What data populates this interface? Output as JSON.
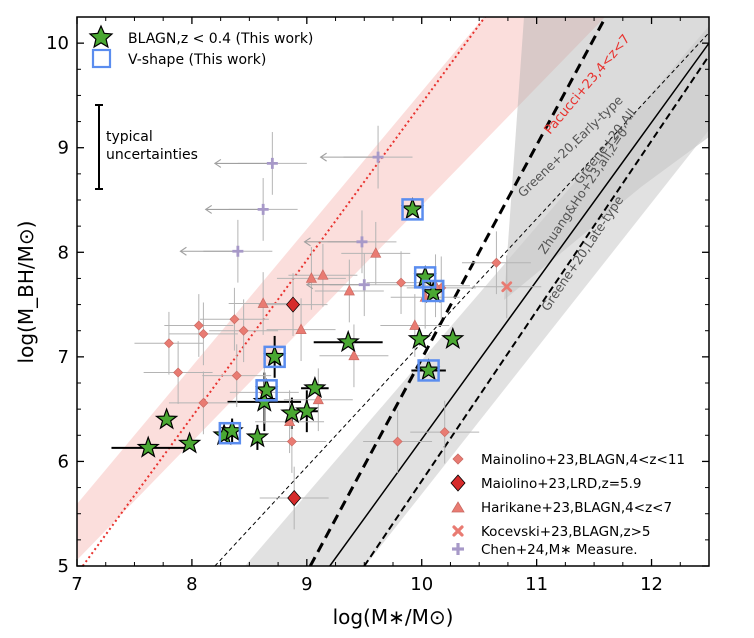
{
  "chart_data": {
    "type": "scatter",
    "xlabel": "log(M∗/M⊙)",
    "ylabel": "log(M_BH/M⊙)",
    "xlim": [
      7,
      12.5
    ],
    "ylim": [
      5,
      10.25
    ],
    "xticks": [
      "7",
      "8",
      "9",
      "10",
      "11",
      "12"
    ],
    "yticks": [
      "5",
      "6",
      "7",
      "8",
      "9",
      "10"
    ],
    "grid": false,
    "legend_top": {
      "placement": "top-left",
      "entries": [
        {
          "label": "BLAGN,z < 0.4 (This work)",
          "marker": "star"
        },
        {
          "label": "V-shape (This work)",
          "marker": "open-square"
        }
      ]
    },
    "legend_bottom": {
      "placement": "bottom-right",
      "entries": [
        {
          "label": "Mainolino+23,BLAGN,4<z<11",
          "marker": "small-diamond"
        },
        {
          "label": "Maiolino+23,LRD,z=5.9",
          "marker": "diamond"
        },
        {
          "label": "Harikane+23,BLAGN,4<z<7",
          "marker": "triangle"
        },
        {
          "label": "Kocevski+23,BLAGN,z>5",
          "marker": "x"
        },
        {
          "label": "Chen+24,M∗ Measure.",
          "marker": "plus"
        }
      ]
    },
    "annotations": {
      "typical": "typical",
      "uncertainties": "uncertainties"
    },
    "relations": [
      {
        "label": "Pacucci+23,4<z<7",
        "style": "dotted",
        "color": "#e8322e",
        "x": [
          7.05,
          10.55
        ],
        "y": [
          5.0,
          10.25
        ]
      },
      {
        "label": "Greene+20,Early-type",
        "style": "band",
        "color": "#8a8a8a",
        "x": [
          9.5,
          12.5
        ],
        "y": [
          7.52,
          10.25
        ]
      },
      {
        "label": "Greene+20,All",
        "style": "thin-dashed",
        "color": "#000000",
        "x": [
          8.2,
          12.5
        ],
        "y": [
          5.0,
          10.1
        ]
      },
      {
        "label": "Zhuang&Ho+23,all,z=0",
        "style": "thick-dashed",
        "color": "#000000",
        "x": [
          9.03,
          11.6
        ],
        "y": [
          5.0,
          10.25
        ]
      },
      {
        "label": "Greene+20,Late-type",
        "style": "solid",
        "color": "#000000",
        "x": [
          9.2,
          12.5
        ],
        "y": [
          5.0,
          10.0
        ]
      },
      {
        "label": "",
        "style": "dashed",
        "color": "#000000",
        "x": [
          9.5,
          12.5
        ],
        "y": [
          5.0,
          9.88
        ]
      }
    ],
    "series": [
      {
        "name": "BLAGN,z < 0.4 (This work)",
        "marker": "star",
        "color": "#4aa832",
        "points": [
          {
            "x": 7.62,
            "y": 6.13,
            "xerr": 0.32
          },
          {
            "x": 7.78,
            "y": 6.4
          },
          {
            "x": 7.98,
            "y": 6.17
          },
          {
            "x": 8.28,
            "y": 6.25
          },
          {
            "x": 8.35,
            "y": 6.29,
            "yerr": 0.12
          },
          {
            "x": 8.57,
            "y": 6.23,
            "yerr": 0.12
          },
          {
            "x": 8.63,
            "y": 6.57,
            "xerr": 0.32,
            "yerr": 0.28
          },
          {
            "x": 8.65,
            "y": 6.68
          },
          {
            "x": 8.72,
            "y": 7.0,
            "yerr": 0.2
          },
          {
            "x": 8.87,
            "y": 6.46,
            "yerr": 0.15
          },
          {
            "x": 9.0,
            "y": 6.48,
            "xerr": 0.1,
            "yerr": 0.2
          },
          {
            "x": 9.07,
            "y": 6.7,
            "xerr": 0.12
          },
          {
            "x": 9.36,
            "y": 7.14,
            "xerr": 0.3
          },
          {
            "x": 9.92,
            "y": 8.41
          },
          {
            "x": 9.98,
            "y": 7.17
          },
          {
            "x": 10.03,
            "y": 7.76
          },
          {
            "x": 10.06,
            "y": 6.87,
            "xerr": 0.15
          },
          {
            "x": 10.1,
            "y": 7.61
          },
          {
            "x": 10.27,
            "y": 7.17
          }
        ]
      },
      {
        "name": "V-shape (This work)",
        "marker": "open-square",
        "color": "#5b8def",
        "points": [
          {
            "x": 8.33,
            "y": 6.27
          },
          {
            "x": 8.65,
            "y": 6.68
          },
          {
            "x": 8.72,
            "y": 7.0
          },
          {
            "x": 9.92,
            "y": 8.41
          },
          {
            "x": 10.03,
            "y": 7.76
          },
          {
            "x": 10.06,
            "y": 6.87
          },
          {
            "x": 10.1,
            "y": 7.63
          }
        ]
      },
      {
        "name": "Mainolino+23,BLAGN,4<z<11",
        "marker": "small-diamond",
        "color": "#e97b72",
        "points": [
          {
            "x": 7.8,
            "y": 7.13
          },
          {
            "x": 7.88,
            "y": 6.85
          },
          {
            "x": 8.06,
            "y": 7.3
          },
          {
            "x": 8.1,
            "y": 7.22
          },
          {
            "x": 8.1,
            "y": 6.56
          },
          {
            "x": 8.37,
            "y": 7.36
          },
          {
            "x": 8.39,
            "y": 6.82
          },
          {
            "x": 8.45,
            "y": 7.25
          },
          {
            "x": 8.63,
            "y": 6.66
          },
          {
            "x": 8.87,
            "y": 6.19
          },
          {
            "x": 9.82,
            "y": 7.71
          },
          {
            "x": 9.79,
            "y": 6.19
          },
          {
            "x": 10.17,
            "y": 7.66
          },
          {
            "x": 10.2,
            "y": 6.28
          },
          {
            "x": 10.65,
            "y": 7.9
          }
        ]
      },
      {
        "name": "Maiolino+23,LRD,z=5.9",
        "marker": "diamond",
        "color": "#d62b2b",
        "points": [
          {
            "x": 8.88,
            "y": 7.5
          },
          {
            "x": 8.89,
            "y": 5.65
          }
        ]
      },
      {
        "name": "Harikane+23,BLAGN,4<z<7",
        "marker": "triangle",
        "color": "#e97b72",
        "points": [
          {
            "x": 8.62,
            "y": 7.51
          },
          {
            "x": 8.85,
            "y": 6.38
          },
          {
            "x": 8.95,
            "y": 7.26
          },
          {
            "x": 9.04,
            "y": 7.75
          },
          {
            "x": 9.1,
            "y": 6.59
          },
          {
            "x": 9.14,
            "y": 7.78
          },
          {
            "x": 9.37,
            "y": 7.63
          },
          {
            "x": 9.41,
            "y": 7.01
          },
          {
            "x": 9.6,
            "y": 7.99
          },
          {
            "x": 9.94,
            "y": 7.3
          },
          {
            "x": 10.03,
            "y": 7.57
          },
          {
            "x": 10.12,
            "y": 7.68
          }
        ]
      },
      {
        "name": "Kocevski+23,BLAGN,z>5",
        "marker": "x",
        "color": "#e97b72",
        "points": [
          {
            "x": 10.74,
            "y": 7.67
          }
        ]
      },
      {
        "name": "Chen+24,M∗ Measure.",
        "marker": "plus",
        "color": "#a799c8",
        "points": [
          {
            "x": 8.4,
            "y": 8.01
          },
          {
            "x": 8.62,
            "y": 8.41
          },
          {
            "x": 8.7,
            "y": 8.85
          },
          {
            "x": 9.48,
            "y": 8.1
          },
          {
            "x": 9.5,
            "y": 7.69
          },
          {
            "x": 9.62,
            "y": 8.91
          }
        ]
      }
    ]
  }
}
